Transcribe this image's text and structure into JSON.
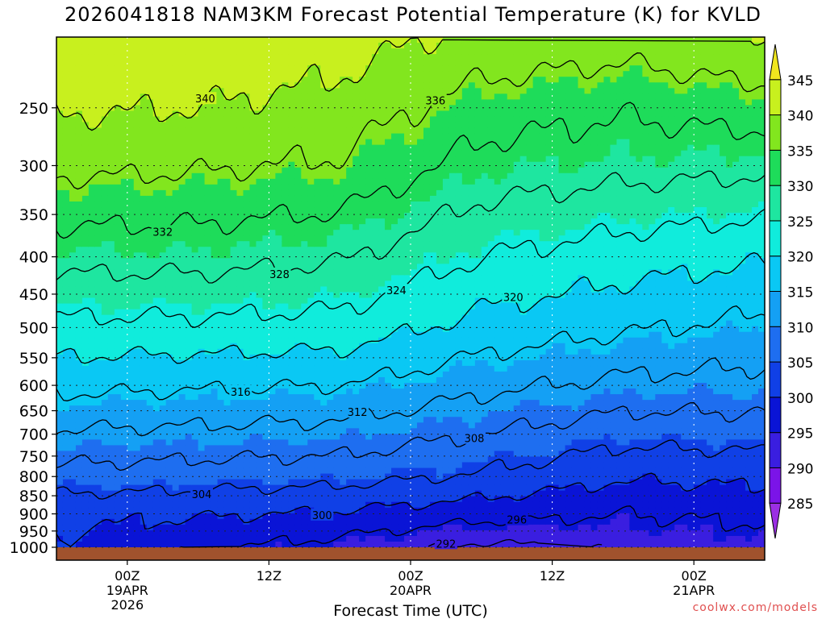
{
  "chart_data": {
    "type": "heatmap",
    "title": "2026041818 NAM3KM Forecast Potential Temperature (K) for KVLD",
    "xlabel": "Forecast Time (UTC)",
    "ylabel": "",
    "y_ticks": [
      250,
      300,
      350,
      400,
      450,
      500,
      550,
      600,
      650,
      700,
      750,
      800,
      850,
      900,
      950,
      1000
    ],
    "ylim": [
      1000,
      200
    ],
    "x_ticks": [
      {
        "hour": 6,
        "line1": "00Z",
        "line2": "19APR",
        "line3": "2026"
      },
      {
        "hour": 18,
        "line1": "12Z",
        "line2": "",
        "line3": ""
      },
      {
        "hour": 30,
        "line1": "00Z",
        "line2": "20APR",
        "line3": ""
      },
      {
        "hour": 42,
        "line1": "12Z",
        "line2": "",
        "line3": ""
      },
      {
        "hour": 54,
        "line1": "00Z",
        "line2": "21APR",
        "line3": ""
      }
    ],
    "xlim": [
      0,
      60
    ],
    "colorbar": {
      "ticks": [
        285,
        290,
        295,
        300,
        305,
        310,
        315,
        320,
        325,
        330,
        335,
        340,
        345
      ],
      "bands": [
        {
          "lo": 280,
          "hi": 285,
          "color": "#9b2fe3"
        },
        {
          "lo": 285,
          "hi": 290,
          "color": "#7b14e8"
        },
        {
          "lo": 290,
          "hi": 295,
          "color": "#3a1ee0"
        },
        {
          "lo": 295,
          "hi": 300,
          "color": "#0a14d6"
        },
        {
          "lo": 300,
          "hi": 305,
          "color": "#1040e6"
        },
        {
          "lo": 305,
          "hi": 310,
          "color": "#1e6ef0"
        },
        {
          "lo": 310,
          "hi": 315,
          "color": "#14a0f4"
        },
        {
          "lo": 315,
          "hi": 320,
          "color": "#0ac8f4"
        },
        {
          "lo": 320,
          "hi": 325,
          "color": "#10ecdc"
        },
        {
          "lo": 325,
          "hi": 330,
          "color": "#1ee6a0"
        },
        {
          "lo": 330,
          "hi": 335,
          "color": "#1edc5a"
        },
        {
          "lo": 335,
          "hi": 340,
          "color": "#82e61e"
        },
        {
          "lo": 340,
          "hi": 345,
          "color": "#c8f01e"
        },
        {
          "lo": 345,
          "hi": 350,
          "color": "#f0e61e"
        }
      ]
    },
    "theta_profiles": [
      {
        "hour": 0,
        "levels": [
          1000,
          900,
          800,
          700,
          600,
          500,
          400,
          300,
          250,
          200
        ],
        "theta": [
          299.5,
          301,
          306.5,
          311.5,
          317,
          323,
          329.5,
          337,
          340.5,
          344
        ]
      },
      {
        "hour": 12,
        "levels": [
          1000,
          900,
          800,
          700,
          600,
          500,
          400,
          300,
          250,
          200
        ],
        "theta": [
          296.5,
          300.5,
          306,
          311,
          316.5,
          323,
          329.5,
          336.5,
          340,
          343.5
        ]
      },
      {
        "hour": 24,
        "levels": [
          1000,
          900,
          800,
          700,
          600,
          500,
          400,
          300,
          250,
          200
        ],
        "theta": [
          294.5,
          299.5,
          305.5,
          310.5,
          316,
          322.5,
          328.5,
          335.5,
          338.5,
          342
        ]
      },
      {
        "hour": 36,
        "levels": [
          1000,
          900,
          800,
          700,
          600,
          500,
          400,
          300,
          250,
          200
        ],
        "theta": [
          291,
          297.5,
          303.5,
          308,
          313,
          318.5,
          324,
          330.5,
          334,
          339
        ]
      },
      {
        "hour": 48,
        "levels": [
          1000,
          900,
          800,
          700,
          600,
          500,
          400,
          300,
          250,
          200
        ],
        "theta": [
          293,
          296,
          300.5,
          305.5,
          311,
          316.5,
          322,
          329.5,
          332.5,
          338
        ]
      },
      {
        "hour": 60,
        "levels": [
          1000,
          900,
          800,
          700,
          600,
          500,
          400,
          300,
          250,
          200
        ],
        "theta": [
          294,
          297,
          301,
          306,
          310.5,
          315,
          320.5,
          329,
          334,
          340
        ]
      }
    ],
    "contour_levels": [
      292,
      296,
      300,
      304,
      308,
      312,
      316,
      320,
      324,
      328,
      332,
      336,
      340
    ],
    "contour_labels": [
      "340",
      "336",
      "332",
      "328",
      "324",
      "320",
      "316",
      "312",
      "308",
      "304",
      "300",
      "296",
      "292"
    ],
    "grid": true
  },
  "credit": "coolwx.com/models"
}
